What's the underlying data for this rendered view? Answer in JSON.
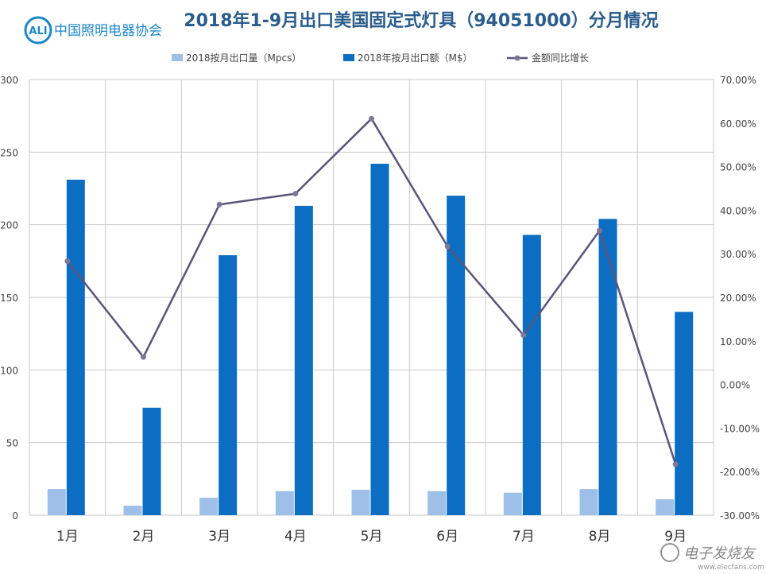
{
  "header": {
    "logo_mark": "ALI",
    "logo_text": "中国照明电器协会",
    "title": "2018年1-9月出口美国固定式灯具（94051000）分月情况"
  },
  "legend": {
    "items": [
      {
        "label": "2018按月出口量（Mpcs）",
        "color": "#9dbfe8",
        "kind": "bar"
      },
      {
        "label": "2018年按月出口额（M$）",
        "color": "#0b6ec3",
        "kind": "bar"
      },
      {
        "label": "金额同比增长",
        "color": "#5a5578",
        "kind": "line"
      }
    ]
  },
  "watermark": {
    "brand": "电子发烧友",
    "url": "www.elecfans.com"
  },
  "chart_data": {
    "type": "bar",
    "categories": [
      "1月",
      "2月",
      "3月",
      "4月",
      "5月",
      "6月",
      "7月",
      "8月",
      "9月"
    ],
    "title": "2018年1-9月出口美国固定式灯具（94051000）分月情况",
    "ylim": [
      0,
      300
    ],
    "y_ticks": [
      "0",
      "50",
      "100",
      "150",
      "200",
      "250",
      "300"
    ],
    "y2lim": [
      -0.3,
      0.7
    ],
    "y2_ticks": [
      "-30.00%",
      "-20.00%",
      "-10.00%",
      "0.00%",
      "10.00%",
      "20.00%",
      "30.00%",
      "40.00%",
      "50.00%",
      "60.00%",
      "70.00%"
    ],
    "grid": true,
    "legend_position": "top",
    "series": [
      {
        "name": "2018按月出口量（Mpcs）",
        "type": "bar",
        "axis": "left",
        "color": "#9dbfe8",
        "values": [
          18,
          6.5,
          12,
          16.5,
          17.5,
          16.5,
          15.5,
          18,
          11
        ]
      },
      {
        "name": "2018年按月出口额（M$）",
        "type": "bar",
        "axis": "left",
        "color": "#0b6ec3",
        "values": [
          231,
          74,
          179,
          213,
          242,
          220,
          193,
          204,
          140
        ]
      },
      {
        "name": "金额同比增长",
        "type": "line",
        "axis": "right",
        "color": "#5a5578",
        "values": [
          0.283,
          0.063,
          0.413,
          0.438,
          0.61,
          0.317,
          0.113,
          0.353,
          -0.183
        ]
      }
    ]
  }
}
